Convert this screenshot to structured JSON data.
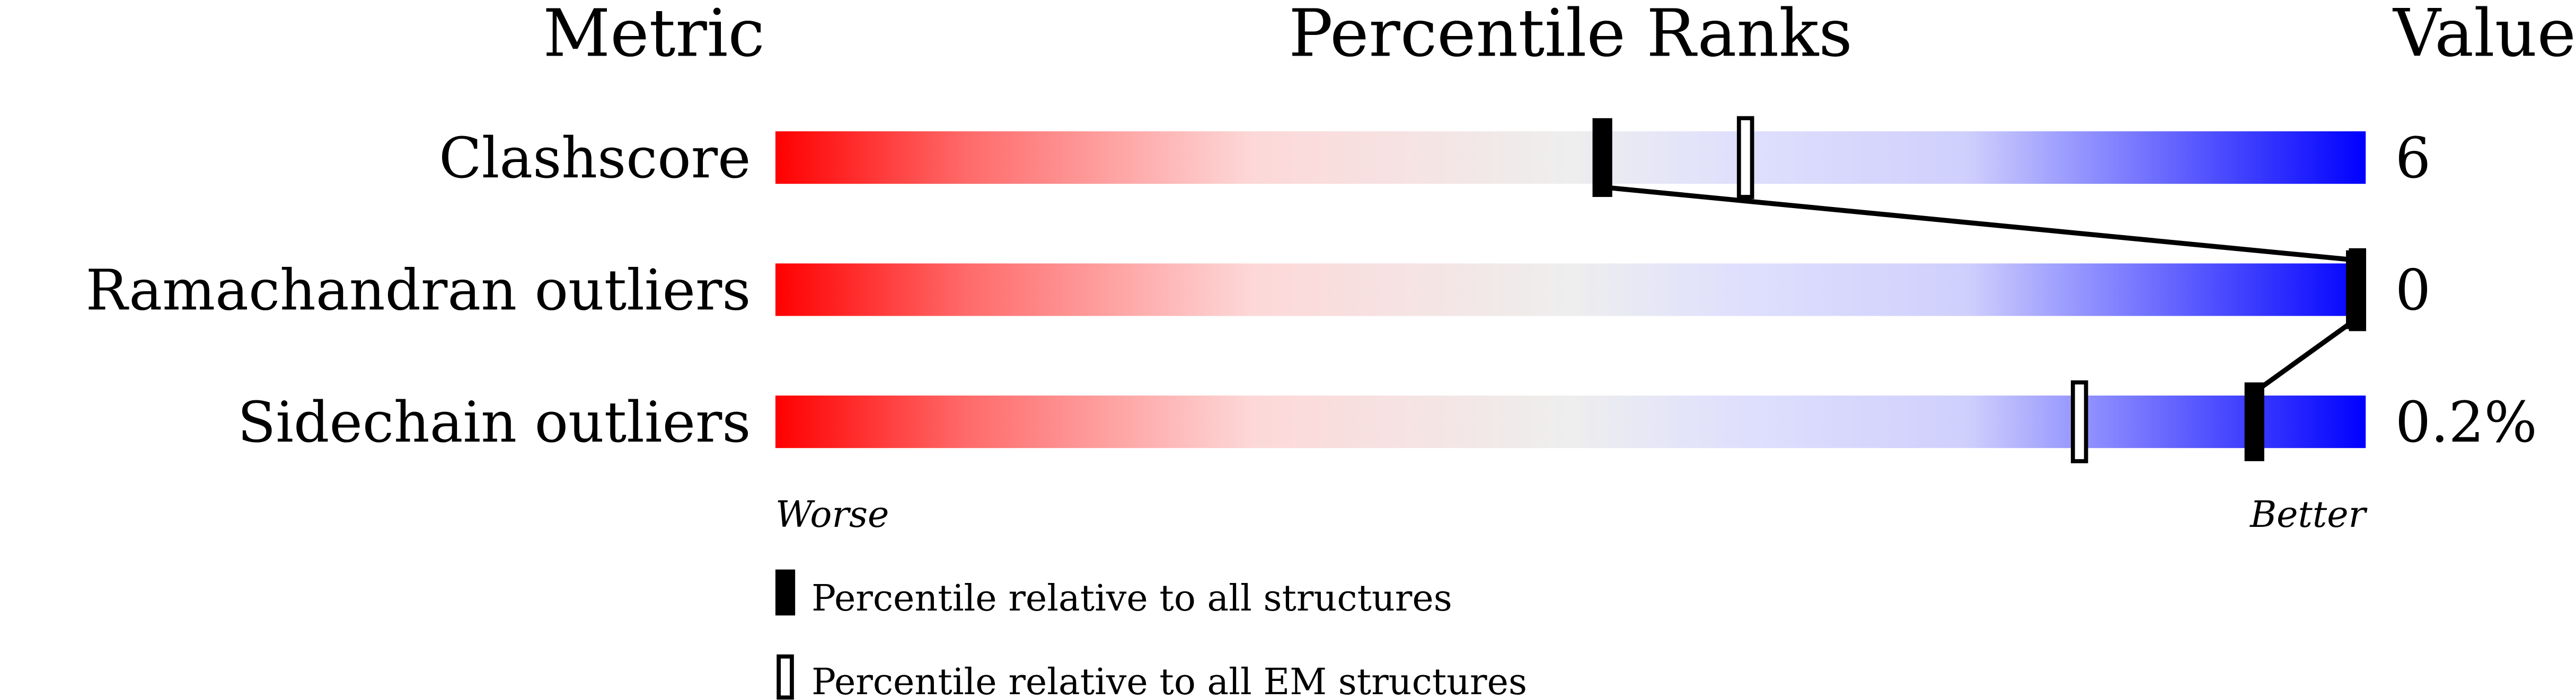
{
  "chart_data": {
    "type": "percentile-bar",
    "headers": {
      "metric": "Metric",
      "ranks": "Percentile Ranks",
      "value": "Value"
    },
    "xlim": [
      0,
      100
    ],
    "rows": [
      {
        "metric": "Clashscore",
        "value": "6",
        "percentile_all": 52,
        "percentile_em": 61
      },
      {
        "metric": "Ramachandran outliers",
        "value": "0",
        "percentile_all": 100,
        "percentile_em": 100
      },
      {
        "metric": "Sidechain outliers",
        "value": "0.2%",
        "percentile_all": 93,
        "percentile_em": 82
      }
    ],
    "axis_labels": {
      "worse": "Worse",
      "better": "Better"
    },
    "legend": {
      "all": "Percentile relative to all structures",
      "em": "Percentile relative to all EM structures"
    },
    "colors": {
      "worse": "#ff0000",
      "middle": "#eeeeee",
      "better": "#0000ff"
    }
  }
}
